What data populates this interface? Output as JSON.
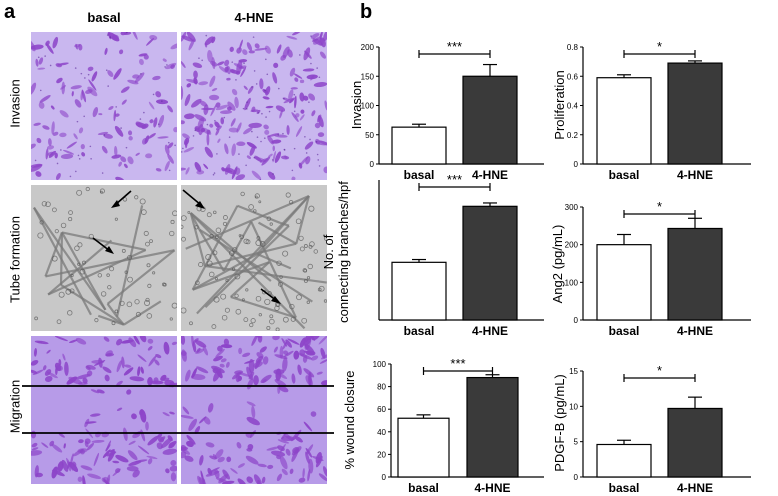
{
  "panel_a": {
    "letter": "a",
    "columns": [
      "basal",
      "4-HNE"
    ],
    "rows": [
      "Invasion",
      "Tube formation",
      "Migration"
    ]
  },
  "panel_b": {
    "letter": "b"
  },
  "colors": {
    "invasion_bg": "#c9b7ef",
    "cell_purple": "#8d45c9",
    "tube_bg": "#c8c8c8",
    "tube_dark": "#7a7a7a",
    "migration_bg": "#b79be8",
    "bar_open": "#ffffff",
    "bar_filled": "#3a3a3a"
  },
  "chart_data": [
    {
      "id": "invasion",
      "type": "bar",
      "categories": [
        "basal",
        "4-HNE"
      ],
      "values": [
        63,
        150
      ],
      "errors": [
        5,
        20
      ],
      "ylabel": "Invasion",
      "ylim": [
        0,
        200
      ],
      "yticks": [
        0,
        50,
        100,
        150,
        200
      ],
      "significance": "***"
    },
    {
      "id": "proliferation",
      "type": "bar",
      "categories": [
        "basal",
        "4-HNE"
      ],
      "values": [
        0.59,
        0.69
      ],
      "errors": [
        0.02,
        0.015
      ],
      "ylabel": "Proliferation",
      "ylim": [
        0,
        0.8
      ],
      "yticks": [
        0,
        0.2,
        0.4,
        0.6,
        0.8
      ],
      "significance": "*"
    },
    {
      "id": "branches",
      "type": "bar",
      "categories": [
        "basal",
        "4-HNE"
      ],
      "values": [
        10.3,
        20.3
      ],
      "errors": [
        0.5,
        0.6
      ],
      "ylabel": "No. of connecting branches/hpf",
      "ylim": [
        0,
        25
      ],
      "yticks": [],
      "significance": "***"
    },
    {
      "id": "ang2",
      "type": "bar",
      "categories": [
        "basal",
        "4-HNE"
      ],
      "values": [
        200,
        243
      ],
      "errors": [
        27,
        27
      ],
      "ylabel": "Ang2 (pg/mL)",
      "ylim": [
        0,
        300
      ],
      "yticks": [
        0,
        100,
        200,
        300
      ],
      "significance": "*"
    },
    {
      "id": "wound",
      "type": "bar",
      "categories": [
        "basal",
        "4-HNE"
      ],
      "values": [
        52,
        88
      ],
      "errors": [
        3,
        2.5
      ],
      "ylabel": "% wound closure",
      "ylim": [
        0,
        100
      ],
      "yticks": [
        0,
        20,
        40,
        60,
        80,
        100
      ],
      "significance": "***"
    },
    {
      "id": "pdgfb",
      "type": "bar",
      "categories": [
        "basal",
        "4-HNE"
      ],
      "values": [
        4.6,
        9.7
      ],
      "errors": [
        0.6,
        1.6
      ],
      "ylabel": "PDGF-B (pg/mL)",
      "ylim": [
        0,
        15
      ],
      "yticks": [
        0,
        5,
        10,
        15
      ],
      "significance": "*"
    }
  ]
}
